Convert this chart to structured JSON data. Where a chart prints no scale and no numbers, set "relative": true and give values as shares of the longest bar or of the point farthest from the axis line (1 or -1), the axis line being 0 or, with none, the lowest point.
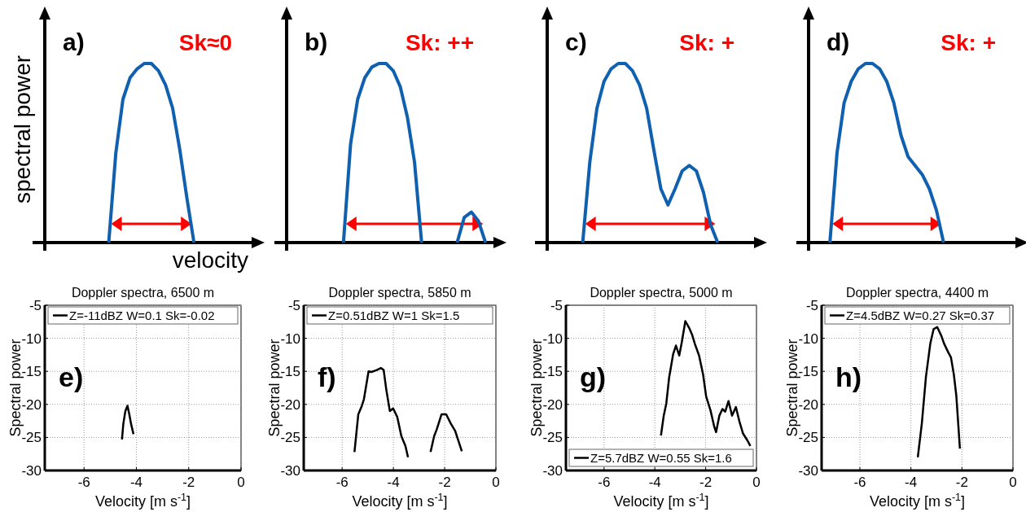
{
  "chart_data": [
    {
      "type": "line",
      "relative": true,
      "xlabel": "velocity",
      "ylabel": "spectral power",
      "annotations": [
        "a)",
        "Sk≈0"
      ],
      "categories": [
        null,
        null,
        null,
        null,
        null,
        null,
        null,
        null,
        null,
        null,
        null,
        null,
        null,
        null,
        null,
        null,
        null,
        null,
        null,
        null,
        null,
        null,
        null,
        null,
        null,
        null,
        null,
        null,
        null,
        null
      ],
      "series": [
        {
          "color": "#1060b0",
          "values": [
            null,
            null,
            null,
            null,
            null,
            null,
            null,
            null,
            null,
            0,
            0.5,
            0.8,
            0.92,
            0.97,
            1.0,
            1.0,
            0.96,
            0.88,
            0.75,
            0.52,
            0.25,
            0,
            null,
            null,
            null,
            null,
            null,
            null,
            null,
            null
          ]
        }
      ]
    },
    {
      "type": "line",
      "relative": true,
      "annotations": [
        "b)",
        "Sk: ++"
      ],
      "categories": [
        null,
        null,
        null,
        null,
        null,
        null,
        null,
        null,
        null,
        null,
        null,
        null,
        null,
        null,
        null,
        null,
        null,
        null,
        null,
        null,
        null,
        null,
        null,
        null,
        null,
        null,
        null,
        null,
        null,
        null
      ],
      "series": [
        {
          "color": "#1060b0",
          "values": [
            null,
            null,
            null,
            null,
            null,
            null,
            null,
            null,
            0,
            0.55,
            0.8,
            0.92,
            0.98,
            1.0,
            1.0,
            0.96,
            0.87,
            0.7,
            0.45,
            0,
            null,
            null,
            null,
            null,
            null,
            null,
            null,
            null,
            null,
            null
          ]
        },
        {
          "color": "#1060b0",
          "values": [
            null,
            null,
            null,
            null,
            null,
            null,
            null,
            null,
            null,
            null,
            null,
            null,
            null,
            null,
            null,
            null,
            null,
            null,
            null,
            null,
            null,
            null,
            null,
            null,
            0,
            0.14,
            0.17,
            0.12,
            0,
            null
          ]
        }
      ]
    },
    {
      "type": "line",
      "relative": true,
      "annotations": [
        "c)",
        "Sk: +"
      ],
      "categories": [
        null,
        null,
        null,
        null,
        null,
        null,
        null,
        null,
        null,
        null,
        null,
        null,
        null,
        null,
        null,
        null,
        null,
        null,
        null,
        null,
        null,
        null,
        null,
        null,
        null,
        null,
        null,
        null,
        null,
        null
      ],
      "series": [
        {
          "color": "#1060b0",
          "values": [
            null,
            null,
            null,
            null,
            null,
            0,
            0.45,
            0.75,
            0.9,
            0.97,
            1.0,
            1.0,
            0.96,
            0.88,
            0.75,
            0.52,
            0.3,
            0.21,
            0.3,
            0.4,
            0.43,
            0.4,
            0.28,
            0.1,
            0,
            null,
            null,
            null,
            null,
            null
          ]
        }
      ]
    },
    {
      "type": "line",
      "relative": true,
      "annotations": [
        "d)",
        "Sk: +"
      ],
      "categories": [
        null,
        null,
        null,
        null,
        null,
        null,
        null,
        null,
        null,
        null,
        null,
        null,
        null,
        null,
        null,
        null,
        null,
        null,
        null,
        null,
        null,
        null,
        null,
        null,
        null,
        null,
        null,
        null,
        null,
        null
      ],
      "series": [
        {
          "color": "#1060b0",
          "values": [
            null,
            null,
            null,
            0,
            0.5,
            0.78,
            0.9,
            0.97,
            1.0,
            1.0,
            0.97,
            0.9,
            0.78,
            0.6,
            0.48,
            0.43,
            0.38,
            0.3,
            0.18,
            0,
            null,
            null,
            null,
            null,
            null,
            null,
            null,
            null,
            null,
            null
          ]
        }
      ]
    },
    {
      "type": "line",
      "title": "Doppler spectra, 6500 m",
      "xlabel": "Velocity [m s$^{-1}$]",
      "ylabel": "Spectral power",
      "annotations": [
        "e)"
      ],
      "xlim": [
        -7.5,
        0
      ],
      "xticks": [
        -6,
        -4,
        -2,
        0
      ],
      "ylim": [
        -30,
        -5
      ],
      "yticks": [
        -30,
        -25,
        -20,
        -15,
        -10,
        -5
      ],
      "grid": true,
      "legend": "top",
      "series": [
        {
          "name": "Z=-11dBZ W=0.1 Sk=-0.02",
          "color": "#000000",
          "x": [
            -4.55,
            -4.5,
            -4.42,
            -4.34,
            -4.27,
            -4.2,
            -4.11
          ],
          "values": [
            -25.3,
            -23,
            -21,
            -20.2,
            -21.5,
            -23,
            -24.5
          ]
        }
      ]
    },
    {
      "type": "line",
      "title": "Doppler spectra, 5850 m",
      "xlabel": "Velocity [m s$^{-1}$]",
      "ylabel": "Spectral power",
      "annotations": [
        "f)"
      ],
      "xlim": [
        -7.5,
        0
      ],
      "xticks": [
        -6,
        -4,
        -2,
        0
      ],
      "ylim": [
        -30,
        -5
      ],
      "yticks": [
        -30,
        -25,
        -20,
        -15,
        -10,
        -5
      ],
      "grid": true,
      "legend": "top",
      "series": [
        {
          "name": "Z=0.51dBZ  W=1  Sk=1.5",
          "color": "#000000",
          "x": [
            -5.52,
            -5.37,
            -5.23,
            -5.15,
            -4.97,
            -4.86,
            -4.65,
            -4.49,
            -4.38,
            -4.28,
            -4.14,
            -4.01,
            -3.85,
            -3.69,
            -3.53,
            -3.43,
            -3.0,
            -2.55,
            -2.41,
            -2.31,
            -2.12,
            -1.94,
            -1.76,
            -1.59,
            -1.33
          ],
          "values": [
            -27.2,
            -21.5,
            -20.2,
            -19.2,
            -15,
            -15.1,
            -14.8,
            -14.5,
            -14.8,
            -17.7,
            -21,
            -20.6,
            -21.9,
            -24.8,
            -26.3,
            -28,
            null,
            -27.2,
            -24.8,
            -23.8,
            -21.5,
            -21.5,
            -22.9,
            -24,
            -27.1
          ]
        }
      ]
    },
    {
      "type": "line",
      "title": "Doppler spectra, 5000 m",
      "xlabel": "Velocity [m s$^{-1}$]",
      "ylabel": "Spectral power",
      "annotations": [
        "g)"
      ],
      "xlim": [
        -7.5,
        0
      ],
      "xticks": [
        -6,
        -4,
        -2,
        0
      ],
      "ylim": [
        -30,
        -5
      ],
      "yticks": [
        -30,
        -25,
        -20,
        -15,
        -10,
        -5
      ],
      "grid": true,
      "legend": "bottom",
      "series": [
        {
          "name": "Z=5.7dBZ W=0.55 Sk=1.6",
          "color": "#000000",
          "x": [
            -3.76,
            -3.65,
            -3.55,
            -3.44,
            -3.28,
            -3.17,
            -3.04,
            -2.94,
            -2.8,
            -2.64,
            -2.53,
            -2.42,
            -2.26,
            -2.1,
            -1.98,
            -1.81,
            -1.66,
            -1.59,
            -1.46,
            -1.34,
            -1.23,
            -1.1,
            -0.96,
            -0.81,
            -0.67,
            -0.53,
            -0.35,
            -0.24
          ],
          "values": [
            -24.7,
            -21.7,
            -19.9,
            -16,
            -12.4,
            -11.1,
            -12.6,
            -10.6,
            -7.4,
            -8.5,
            -9.5,
            -10.9,
            -12.6,
            -15.5,
            -18.8,
            -20.9,
            -23.4,
            -24.2,
            -21.7,
            -20.7,
            -21.1,
            -19.5,
            -21.7,
            -20.4,
            -22.6,
            -24.4,
            -25.5,
            -26.3
          ]
        }
      ]
    },
    {
      "type": "line",
      "title": "Doppler spectra, 4400 m",
      "xlabel": "Velocity [m s$^{-1}$]",
      "ylabel": "Spectral power",
      "annotations": [
        "h)"
      ],
      "xlim": [
        -7.5,
        0
      ],
      "xticks": [
        -6,
        -4,
        -2,
        0
      ],
      "ylim": [
        -30,
        -5
      ],
      "yticks": [
        -30,
        -25,
        -20,
        -15,
        -10,
        -5
      ],
      "grid": true,
      "legend": "top",
      "series": [
        {
          "name": "Z=4.5dBZ W=0.27 Sk=0.37",
          "color": "#000000",
          "x": [
            -3.73,
            -3.57,
            -3.41,
            -3.24,
            -3.11,
            -2.97,
            -2.81,
            -2.7,
            -2.54,
            -2.43,
            -2.32,
            -2.22,
            -2.08
          ],
          "values": [
            -28,
            -22.8,
            -15.8,
            -10.8,
            -8.6,
            -8.3,
            -9.6,
            -10.8,
            -12.1,
            -12.9,
            -15.4,
            -18.7,
            -26.7
          ]
        }
      ]
    }
  ]
}
